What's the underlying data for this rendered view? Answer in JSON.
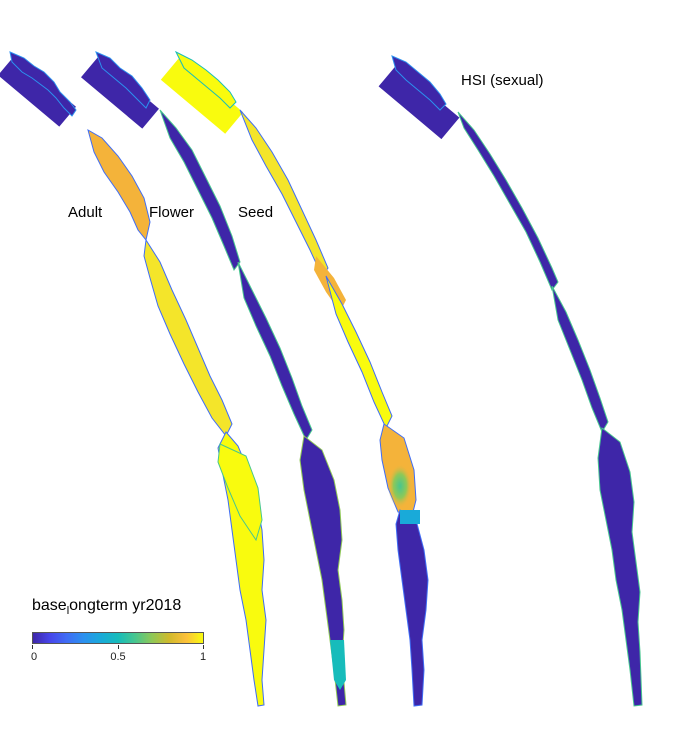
{
  "panels": [
    {
      "label": "Adult",
      "key": "adult"
    },
    {
      "label": "Flower",
      "key": "flower"
    },
    {
      "label": "Seed",
      "key": "seed"
    },
    {
      "label": "HSI (sexual)",
      "key": "hsi"
    }
  ],
  "colorbar": {
    "title_base": "base",
    "title_sub": "l",
    "title_rest": "ongterm yr2018",
    "min_label": "0",
    "mid_label": "0.5",
    "max_label": "1",
    "colormap": "parula",
    "colors": [
      "#3e26a8",
      "#4746eb",
      "#3f6df5",
      "#2b91ef",
      "#19aad9",
      "#17bcbb",
      "#47c68f",
      "#8fc857",
      "#d0ba2c",
      "#fcc03b",
      "#f9fb0e"
    ]
  },
  "colors": {
    "low": "#3e26a8",
    "high": "#f9fb0e",
    "orange": "#f4b33a",
    "teal": "#2ab9b0"
  }
}
